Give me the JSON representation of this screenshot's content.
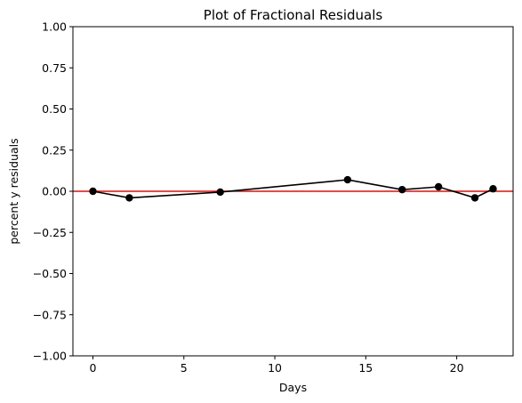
{
  "chart_data": {
    "type": "line",
    "title": "Plot of Fractional Residuals",
    "xlabel": "Days",
    "ylabel": "percent y residuals",
    "xlim": [
      -1.1,
      23.1
    ],
    "ylim": [
      -1.0,
      1.0
    ],
    "xticks": [
      0,
      5,
      10,
      15,
      20
    ],
    "xtick_labels": [
      "0",
      "5",
      "10",
      "15",
      "20"
    ],
    "yticks": [
      1.0,
      0.75,
      0.5,
      0.25,
      0.0,
      -0.25,
      -0.5,
      -0.75,
      -1.0
    ],
    "ytick_labels": [
      "1.00",
      "0.75",
      "0.50",
      "0.25",
      "0.00",
      "−0.25",
      "−0.50",
      "−0.75",
      "−1.00"
    ],
    "grid": false,
    "series": [
      {
        "x": [
          0,
          2,
          7,
          14,
          17,
          19,
          21,
          22
        ],
        "y": [
          0.0,
          -0.04,
          -0.005,
          0.07,
          0.01,
          0.027,
          -0.04,
          0.015
        ],
        "color": "#000000",
        "marker": "circle"
      }
    ],
    "reference_line": {
      "y": 0.0,
      "color": "#ff0000"
    }
  }
}
